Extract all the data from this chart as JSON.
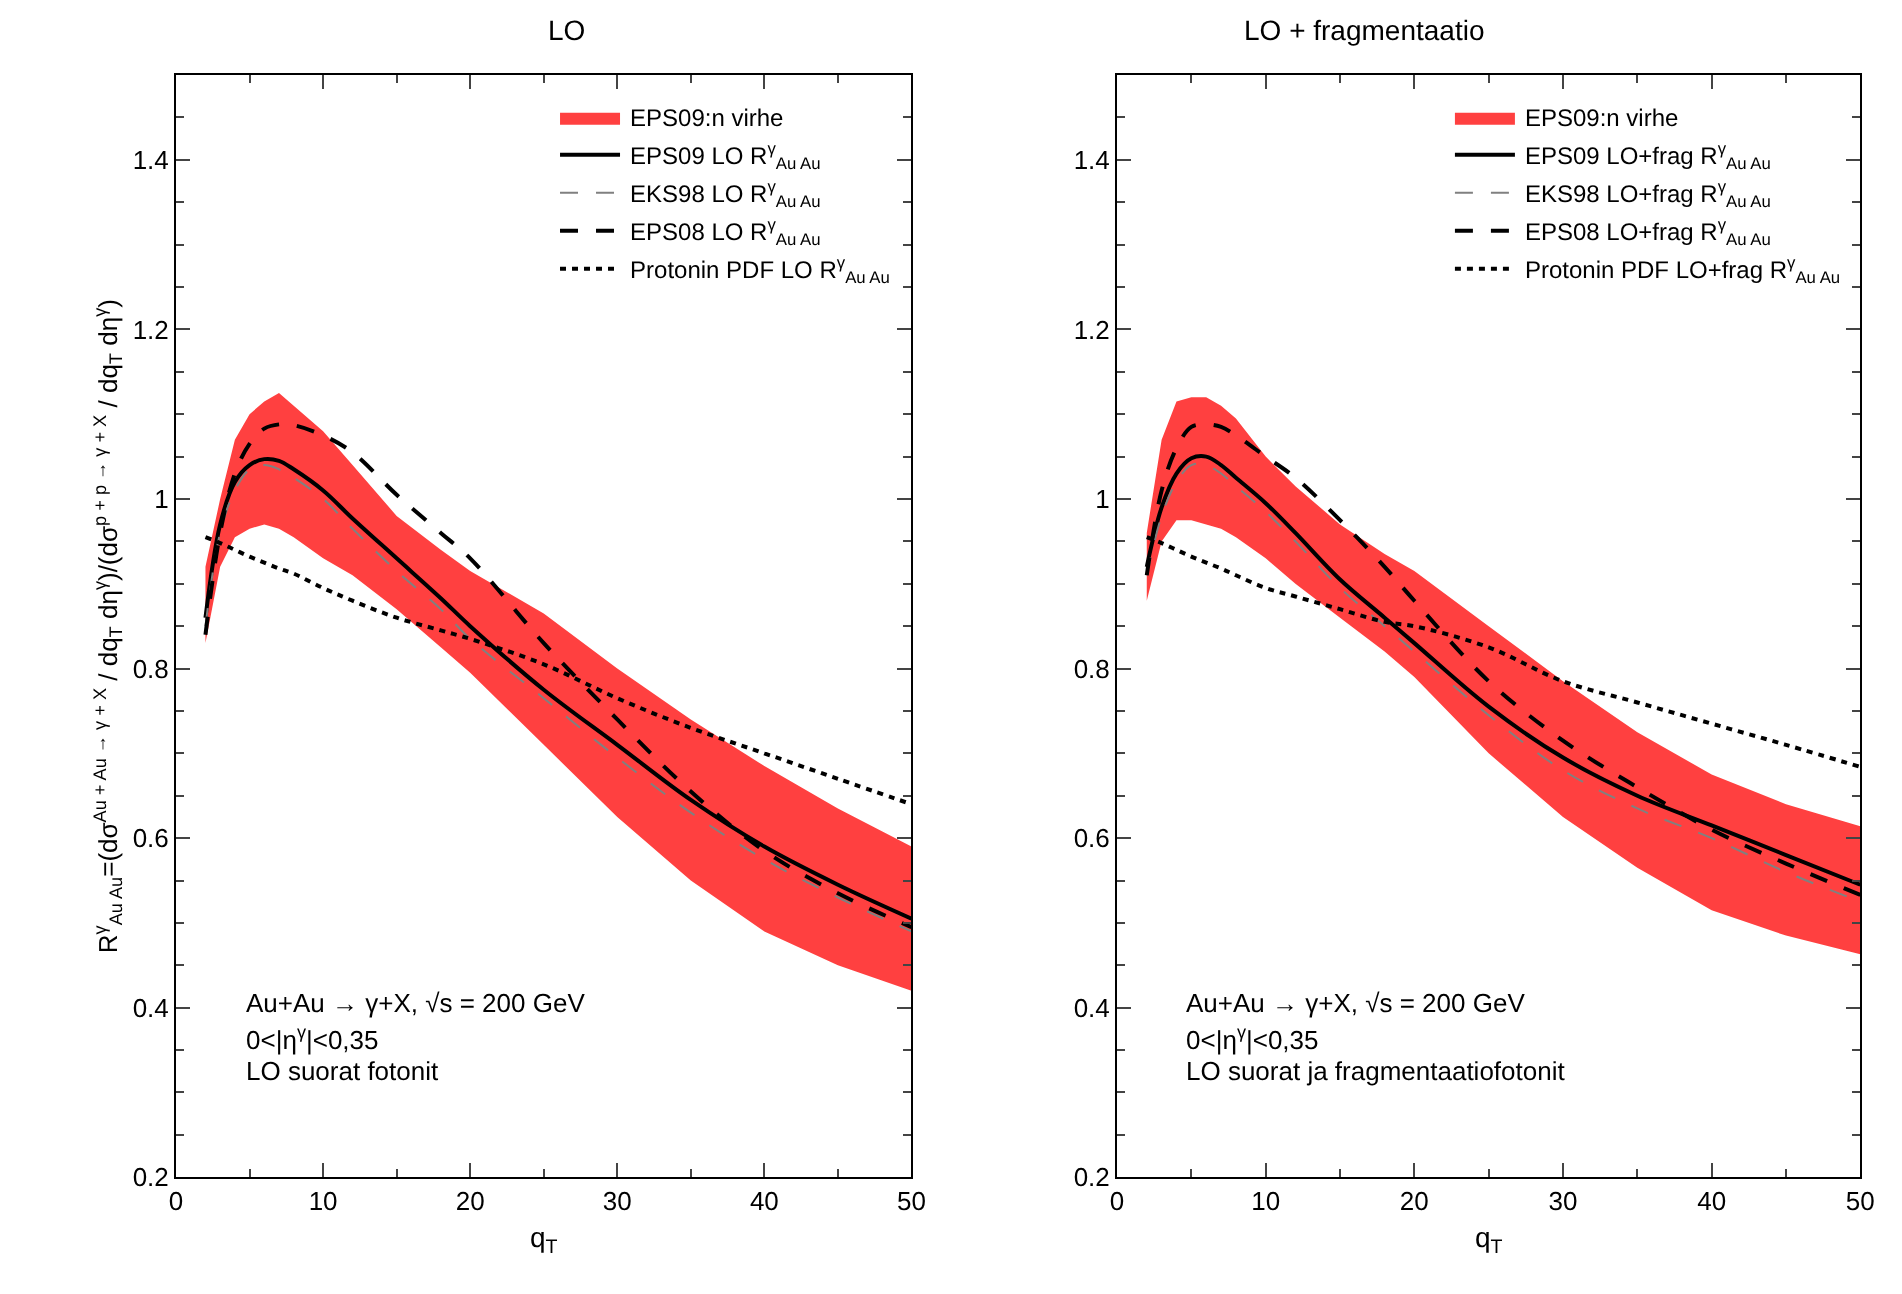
{
  "chart_data": [
    {
      "type": "line",
      "title": "LO",
      "xlabel": "q$_{T}$",
      "ylabel": "R$^{γ}$$_{Au Au}$=(dσ$^{Au + Au → γ + X}$ / dq$_{T}$ dη$^{γ}$)/(dσ$^{p + p → γ + X}$ / dq$_{T}$ dη$^{γ}$)",
      "x": [
        2,
        3,
        4,
        5,
        6,
        7,
        8,
        10,
        12,
        15,
        18,
        20,
        25,
        30,
        35,
        40,
        45,
        50
      ],
      "xlim": [
        0,
        50
      ],
      "xticks": [
        0,
        10,
        20,
        30,
        40,
        50
      ],
      "ylim": [
        0.2,
        1.5
      ],
      "yticks": [
        0.2,
        0.4,
        0.6,
        0.8,
        1,
        1.2,
        1.4
      ],
      "grid": false,
      "legend": "top right",
      "annotations": [
        "Au+Au → γ+X, √s = 200 GeV",
        "0<|η$^{γ}$|<0,35",
        "LO suorat fotonit"
      ],
      "series": [
        {
          "name": "EPS09:n virhe",
          "type": "area",
          "color": "#ff4040",
          "values": [
            null,
            null,
            null,
            null,
            null,
            null,
            null,
            null,
            null,
            null,
            null,
            null,
            null,
            null,
            null,
            null,
            null,
            null
          ],
          "lower": [
            0.83,
            0.92,
            0.955,
            0.965,
            0.97,
            0.965,
            0.955,
            0.93,
            0.91,
            0.87,
            0.825,
            0.795,
            0.71,
            0.625,
            0.55,
            0.49,
            0.45,
            0.42
          ],
          "upper": [
            0.92,
            1.0,
            1.07,
            1.1,
            1.115,
            1.125,
            1.11,
            1.08,
            1.04,
            0.98,
            0.94,
            0.915,
            0.865,
            0.8,
            0.74,
            0.685,
            0.635,
            0.59
          ]
        },
        {
          "name": "EPS09 LO R$^{γ}$$_{Au Au}$",
          "color": "#000000",
          "line_style": "solid",
          "values": [
            0.86,
            0.97,
            1.02,
            1.04,
            1.047,
            1.045,
            1.035,
            1.01,
            0.977,
            0.93,
            0.883,
            0.85,
            0.775,
            0.71,
            0.645,
            0.59,
            0.545,
            0.505
          ]
        },
        {
          "name": "EKS98 LO R$^{γ}$$_{Au Au}$",
          "color": "#808080",
          "line_style": "dashed",
          "values": [
            0.85,
            0.96,
            1.01,
            1.035,
            1.04,
            1.035,
            1.025,
            1.0,
            0.965,
            0.915,
            0.87,
            0.835,
            0.765,
            0.695,
            0.63,
            0.575,
            0.53,
            0.49
          ]
        },
        {
          "name": "EPS08 LO R$^{γ}$$_{Au Au}$",
          "color": "#000000",
          "line_style": "dashed",
          "values": [
            0.84,
            0.96,
            1.03,
            1.065,
            1.083,
            1.088,
            1.087,
            1.075,
            1.055,
            1.005,
            0.96,
            0.93,
            0.83,
            0.74,
            0.655,
            0.585,
            0.535,
            0.495
          ]
        },
        {
          "name": "Protonin PDF LO R$^{γ}$$_{Au Au}$",
          "color": "#000000",
          "line_style": "dotted",
          "values": [
            0.955,
            0.948,
            0.94,
            0.932,
            0.925,
            0.918,
            0.912,
            0.895,
            0.88,
            0.86,
            0.845,
            0.835,
            0.805,
            0.765,
            0.73,
            0.7,
            0.67,
            0.64
          ]
        }
      ]
    },
    {
      "type": "line",
      "title": "LO + fragmentaatio",
      "xlabel": "q$_{T}$",
      "x": [
        2,
        3,
        4,
        5,
        6,
        7,
        8,
        10,
        12,
        15,
        18,
        20,
        25,
        30,
        35,
        40,
        45,
        50
      ],
      "xlim": [
        0,
        50
      ],
      "xticks": [
        0,
        10,
        20,
        30,
        40,
        50
      ],
      "ylim": [
        0.2,
        1.5
      ],
      "yticks": [
        0.2,
        0.4,
        0.6,
        0.8,
        1,
        1.2,
        1.4
      ],
      "grid": false,
      "legend": "top right",
      "annotations": [
        "Au+Au → γ+X, √s = 200 GeV",
        "0<|η$^{γ}$|<0,35",
        "LO suorat ja fragmentaatiofotonit"
      ],
      "series": [
        {
          "name": "EPS09:n virhe",
          "type": "area",
          "color": "#ff4040",
          "values": [
            null,
            null,
            null,
            null,
            null,
            null,
            null,
            null,
            null,
            null,
            null,
            null,
            null,
            null,
            null,
            null,
            null,
            null
          ],
          "lower": [
            0.88,
            0.95,
            0.975,
            0.975,
            0.97,
            0.965,
            0.955,
            0.93,
            0.9,
            0.86,
            0.82,
            0.79,
            0.7,
            0.625,
            0.565,
            0.515,
            0.485,
            0.463
          ],
          "upper": [
            0.96,
            1.07,
            1.115,
            1.12,
            1.12,
            1.11,
            1.095,
            1.05,
            1.015,
            0.97,
            0.935,
            0.915,
            0.85,
            0.785,
            0.725,
            0.675,
            0.64,
            0.614
          ]
        },
        {
          "name": "EPS09 LO+frag R$^{γ}$$_{Au Au}$",
          "color": "#000000",
          "line_style": "solid",
          "values": [
            0.92,
            0.99,
            1.03,
            1.048,
            1.05,
            1.04,
            1.025,
            0.995,
            0.96,
            0.905,
            0.86,
            0.83,
            0.755,
            0.695,
            0.65,
            0.615,
            0.58,
            0.545
          ]
        },
        {
          "name": "EKS98 LO+frag R$^{γ}$$_{Au Au}$",
          "color": "#808080",
          "line_style": "dashed",
          "values": [
            0.91,
            0.98,
            1.02,
            1.04,
            1.04,
            1.03,
            1.015,
            0.985,
            0.95,
            0.895,
            0.85,
            0.82,
            0.745,
            0.68,
            0.635,
            0.6,
            0.56,
            0.525
          ]
        },
        {
          "name": "EPS08 LO+frag R$^{γ}$$_{Au Au}$",
          "color": "#000000",
          "line_style": "dashed",
          "values": [
            0.91,
            1.01,
            1.06,
            1.085,
            1.088,
            1.085,
            1.075,
            1.05,
            1.025,
            0.975,
            0.92,
            0.88,
            0.785,
            0.715,
            0.66,
            0.61,
            0.57,
            0.533
          ]
        },
        {
          "name": "Protonin PDF LO+frag R$^{γ}$$_{Au Au}$",
          "color": "#000000",
          "line_style": "dotted",
          "values": [
            0.955,
            0.948,
            0.94,
            0.932,
            0.925,
            0.918,
            0.91,
            0.895,
            0.885,
            0.87,
            0.855,
            0.85,
            0.825,
            0.785,
            0.76,
            0.735,
            0.71,
            0.684
          ]
        }
      ]
    }
  ]
}
